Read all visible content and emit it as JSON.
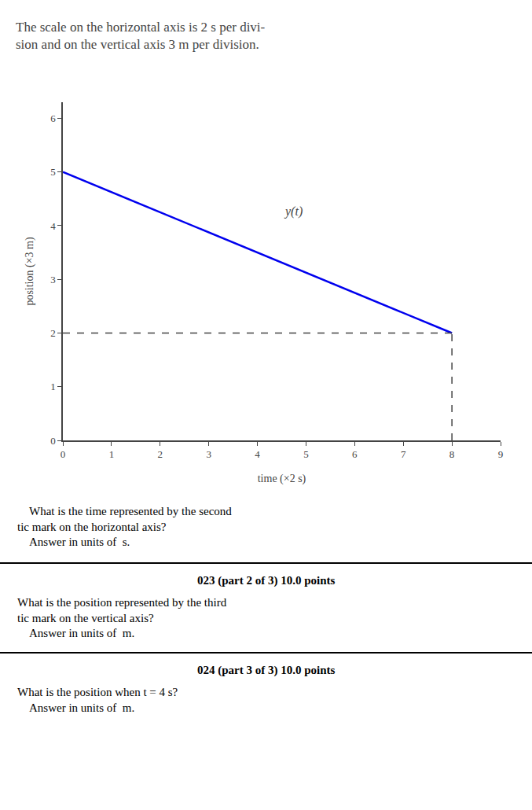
{
  "chart_data": {
    "type": "line",
    "title": "The scale on the horizontal axis is 2 s per divi-\nsion and on the vertical axis 3 m per division.",
    "xlabel": "time (×2 s)",
    "ylabel": "position (×3 m)",
    "xlim": [
      0,
      9
    ],
    "ylim": [
      0,
      6.3
    ],
    "xticks": [
      0,
      1,
      2,
      3,
      4,
      5,
      6,
      7,
      8,
      9
    ],
    "yticks": [
      0,
      1,
      2,
      3,
      4,
      5,
      6
    ],
    "grid": false,
    "series": [
      {
        "x": [
          0,
          8
        ],
        "values": [
          5,
          2
        ],
        "color": "#0000ee",
        "line_style": "solid"
      },
      {
        "x": [
          0,
          8
        ],
        "values": [
          2,
          2
        ],
        "color": "#444444",
        "line_style": "dashed"
      },
      {
        "x": [
          8,
          8
        ],
        "values": [
          0,
          2
        ],
        "color": "#444444",
        "line_style": "dashed"
      }
    ],
    "annotations": [
      {
        "text": "y(t)",
        "x": 4.5,
        "y": 4.1
      },
      {
        "text": "    What is the time represented by the second\ntic mark on the horizontal axis?\n    Answer in units of  s."
      },
      {
        "text": "023 (part 2 of 3) 10.0 points"
      },
      {
        "text": "What is the position represented by the third\ntic mark on the vertical axis?\n    Answer in units of  m."
      },
      {
        "text": "024 (part 3 of 3) 10.0 points"
      },
      {
        "text": "What is the position when t = 4 s?\n    Answer in units of  m."
      }
    ]
  }
}
